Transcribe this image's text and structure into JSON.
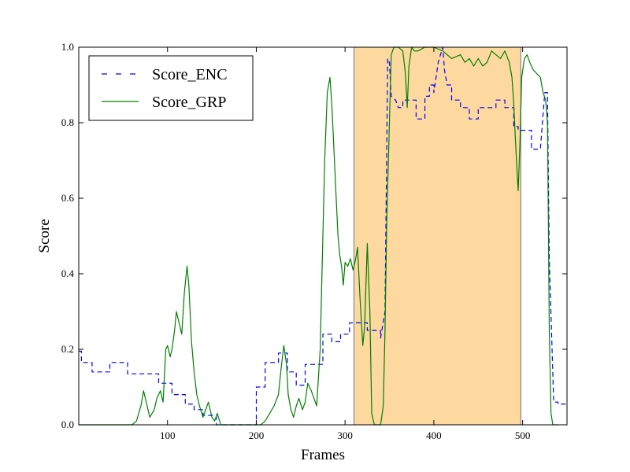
{
  "chart_data": {
    "type": "line",
    "title": "",
    "xlabel": "Frames",
    "ylabel": "Score",
    "xlim": [
      0,
      550
    ],
    "ylim": [
      0,
      1.0
    ],
    "xticks": [
      100,
      200,
      300,
      400,
      500
    ],
    "yticks": [
      0.0,
      0.2,
      0.4,
      0.6,
      0.8,
      1.0
    ],
    "xtick_labels": [
      "100",
      "200",
      "300",
      "400",
      "500"
    ],
    "ytick_labels": [
      "0.0",
      "0.2",
      "0.4",
      "0.6",
      "0.8",
      "1.0"
    ],
    "grid": false,
    "legend_position": "top-left",
    "shaded_region": {
      "x": [
        310,
        498
      ],
      "color": "#fdd9a0"
    },
    "series": [
      {
        "name": "Score_ENC",
        "style": "dashed",
        "color": "#0000ff",
        "x": [
          0,
          3,
          3,
          15,
          15,
          35,
          35,
          35,
          55,
          55,
          90,
          90,
          105,
          105,
          120,
          120,
          130,
          130,
          140,
          140,
          155,
          155,
          170,
          170,
          200,
          200,
          210,
          210,
          225,
          225,
          235,
          235,
          245,
          245,
          255,
          255,
          275,
          275,
          285,
          285,
          295,
          295,
          305,
          305,
          310,
          310,
          325,
          325,
          340,
          340,
          345,
          348,
          350,
          352,
          357,
          360,
          365,
          365,
          380,
          380,
          390,
          390,
          395,
          395,
          400,
          400,
          405,
          410,
          412,
          415,
          420,
          420,
          430,
          430,
          440,
          440,
          450,
          450,
          470,
          470,
          480,
          480,
          490,
          490,
          495,
          495,
          510,
          510,
          520,
          520,
          525,
          528,
          530,
          535,
          540,
          540,
          550
        ],
        "y": [
          0.195,
          0.195,
          0.165,
          0.165,
          0.14,
          0.14,
          0.14,
          0.165,
          0.165,
          0.135,
          0.135,
          0.11,
          0.11,
          0.08,
          0.08,
          0.055,
          0.055,
          0.04,
          0.04,
          0.025,
          0.025,
          0.0,
          0.0,
          0.0,
          0.0,
          0.1,
          0.1,
          0.165,
          0.165,
          0.19,
          0.19,
          0.14,
          0.14,
          0.105,
          0.105,
          0.16,
          0.16,
          0.24,
          0.24,
          0.22,
          0.22,
          0.24,
          0.24,
          0.27,
          0.27,
          0.27,
          0.27,
          0.25,
          0.25,
          0.23,
          0.3,
          0.97,
          0.96,
          0.87,
          0.86,
          0.84,
          0.84,
          0.86,
          0.86,
          0.81,
          0.81,
          0.87,
          0.87,
          0.9,
          0.9,
          0.88,
          0.96,
          1.0,
          0.94,
          0.9,
          0.9,
          0.86,
          0.86,
          0.84,
          0.84,
          0.81,
          0.81,
          0.84,
          0.84,
          0.86,
          0.86,
          0.84,
          0.84,
          0.79,
          0.79,
          0.78,
          0.78,
          0.73,
          0.73,
          0.73,
          0.88,
          0.88,
          0.44,
          0.06,
          0.06,
          0.055,
          0.055
        ]
      },
      {
        "name": "Score_GRP",
        "style": "solid",
        "color": "#008000",
        "x": [
          0,
          60,
          65,
          70,
          73,
          76,
          80,
          85,
          88,
          92,
          95,
          98,
          100,
          103,
          105,
          108,
          110,
          113,
          116,
          119,
          122,
          124,
          127,
          130,
          133,
          136,
          140,
          143,
          146,
          150,
          153,
          156,
          160,
          165,
          170,
          190,
          205,
          210,
          215,
          220,
          225,
          228,
          231,
          234,
          236,
          239,
          242,
          245,
          248,
          252,
          255,
          258,
          262,
          265,
          268,
          272,
          275,
          277,
          280,
          283,
          285,
          288,
          290,
          292,
          294,
          296,
          298,
          300,
          303,
          306,
          309,
          312,
          314,
          317,
          320,
          322,
          325,
          328,
          330,
          333,
          336,
          338,
          340,
          343,
          345,
          347,
          350,
          352,
          355,
          360,
          365,
          368,
          370,
          372,
          375,
          378,
          382,
          390,
          400,
          410,
          420,
          430,
          435,
          440,
          445,
          450,
          455,
          460,
          465,
          470,
          475,
          480,
          485,
          488,
          490,
          492,
          494,
          495,
          497,
          499,
          502,
          505,
          508,
          512,
          516,
          520,
          523,
          526,
          528,
          529,
          530,
          532,
          534,
          536,
          538,
          540
        ],
        "y": [
          0.0,
          0.0,
          0.01,
          0.05,
          0.09,
          0.06,
          0.02,
          0.04,
          0.07,
          0.09,
          0.06,
          0.2,
          0.21,
          0.18,
          0.2,
          0.25,
          0.3,
          0.27,
          0.24,
          0.35,
          0.42,
          0.37,
          0.22,
          0.14,
          0.08,
          0.05,
          0.02,
          0.04,
          0.06,
          0.02,
          0.01,
          0.03,
          0.0,
          0.0,
          0.0,
          0.0,
          0.0,
          0.01,
          0.03,
          0.05,
          0.08,
          0.15,
          0.21,
          0.16,
          0.08,
          0.04,
          0.02,
          0.05,
          0.07,
          0.04,
          0.06,
          0.11,
          0.09,
          0.07,
          0.05,
          0.2,
          0.5,
          0.7,
          0.88,
          0.92,
          0.85,
          0.7,
          0.6,
          0.5,
          0.45,
          0.42,
          0.37,
          0.43,
          0.42,
          0.44,
          0.41,
          0.44,
          0.47,
          0.33,
          0.21,
          0.26,
          0.48,
          0.3,
          0.03,
          0.0,
          0.0,
          0.0,
          0.0,
          0.05,
          0.25,
          0.55,
          0.8,
          0.98,
          1.0,
          1.0,
          0.99,
          0.93,
          0.84,
          0.95,
          1.0,
          0.99,
          0.99,
          1.0,
          1.0,
          0.99,
          0.97,
          0.98,
          0.96,
          0.97,
          0.95,
          0.97,
          0.95,
          0.96,
          0.99,
          0.98,
          0.97,
          0.99,
          0.96,
          0.92,
          0.85,
          0.75,
          0.66,
          0.62,
          0.75,
          0.92,
          0.97,
          0.98,
          0.96,
          0.94,
          0.93,
          0.92,
          0.88,
          0.86,
          0.8,
          0.55,
          0.25,
          0.03,
          0.0,
          0.0,
          0.0,
          0.0
        ]
      }
    ]
  }
}
